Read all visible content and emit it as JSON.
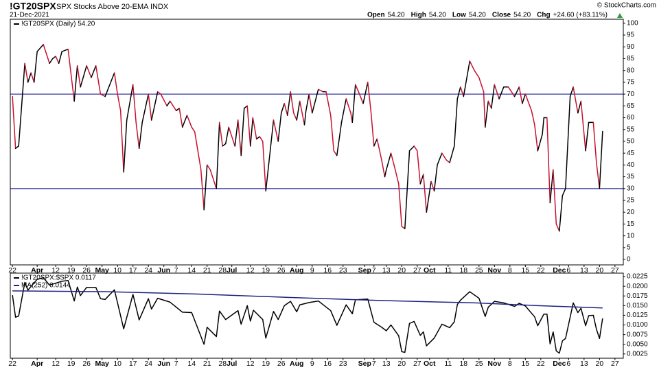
{
  "header": {
    "symbol": "!GT20SPX",
    "description": "SPX Stocks Above 20-EMA INDX",
    "date": "21-Dec-2021",
    "credit": "© StockCharts.com",
    "quote": [
      {
        "label": "Open",
        "value": "54.20"
      },
      {
        "label": "High",
        "value": "54.20"
      },
      {
        "label": "Low",
        "value": "54.20"
      },
      {
        "label": "Close",
        "value": "54.20"
      },
      {
        "label": "Chg",
        "value": "+24.60 (+83.11%)"
      }
    ]
  },
  "chart_data": [
    {
      "type": "line",
      "series": [
        {
          "name": "!GT20SPX (Daily) 54.20",
          "up_color": "#000000",
          "down_color": "#c8102e",
          "x": [
            0,
            1,
            2,
            4,
            5,
            6,
            7,
            8,
            10,
            12,
            13,
            14,
            15,
            16,
            18,
            20,
            21,
            22,
            24,
            25.5,
            27,
            28.5,
            30,
            33,
            34,
            35,
            36,
            37,
            39,
            40,
            41,
            42,
            44,
            45,
            47,
            48,
            50,
            51,
            53,
            54,
            55,
            56.5,
            58,
            59,
            61,
            62,
            63,
            64,
            66,
            67,
            68,
            69,
            70,
            72,
            73,
            74,
            75,
            76,
            77,
            77.8,
            79,
            80,
            81,
            82,
            83.5,
            84.5,
            86,
            87,
            88,
            89,
            90,
            91,
            92,
            93,
            94.5,
            95,
            96,
            97,
            98,
            99,
            100.5,
            101.5,
            103,
            104,
            105,
            106.5,
            108,
            109.5,
            110,
            111,
            112,
            113.5,
            115,
            116,
            117,
            118,
            119.5,
            120.5,
            121,
            122.5,
            123.5,
            125,
            126,
            127,
            128.5,
            130,
            131,
            132,
            133,
            134,
            135.5,
            136.5,
            137.5,
            139,
            140.5,
            141.5,
            143,
            144,
            145,
            146,
            148,
            149.5,
            151,
            152.5,
            153,
            154,
            155,
            156,
            157.5,
            159,
            160.5,
            162.5,
            164,
            165,
            166,
            168,
            169,
            170,
            171.5,
            172,
            173,
            174,
            175,
            176,
            177,
            178,
            179,
            180.5,
            181.5,
            183,
            184,
            185.5,
            186.5,
            188,
            189,
            190,
            191
          ],
          "values": [
            69,
            47,
            48,
            83,
            75,
            79,
            75,
            88,
            91,
            83,
            85,
            86,
            83,
            88,
            89,
            67,
            82,
            73,
            82,
            77,
            82,
            70,
            69,
            79,
            70,
            63,
            37,
            59,
            74,
            58,
            47,
            58,
            70,
            59,
            71,
            70,
            65,
            67,
            63,
            64,
            56,
            61,
            56,
            54,
            38,
            21,
            40,
            38,
            30,
            58,
            48,
            49,
            56,
            48,
            59,
            44,
            64,
            65,
            48,
            60,
            51,
            52,
            50,
            29,
            47,
            59,
            50,
            62,
            66,
            61,
            71,
            62,
            59,
            67,
            57,
            63,
            70,
            62,
            67,
            72,
            71,
            71,
            61,
            46,
            44,
            58,
            68,
            62,
            58,
            74,
            71,
            66,
            75,
            63,
            48,
            51,
            42,
            35,
            38,
            45,
            40,
            32,
            14,
            13,
            46,
            48,
            46,
            32,
            36,
            20,
            33,
            29,
            40,
            45,
            42,
            41,
            48,
            68,
            73,
            69,
            84,
            80,
            77,
            71,
            56,
            67,
            64,
            74,
            68,
            73,
            73,
            69,
            73,
            66,
            70,
            63,
            57,
            46,
            53,
            60,
            60,
            24,
            38,
            15,
            12,
            27,
            30,
            69,
            73,
            62,
            67,
            46,
            58,
            58,
            41,
            30,
            54.2
          ]
        }
      ],
      "xlim": [
        -0.7,
        197.7
      ],
      "ylim": [
        -2.3,
        101.7
      ],
      "yticks": [
        0,
        5,
        10,
        15,
        20,
        25,
        30,
        35,
        40,
        45,
        50,
        55,
        60,
        65,
        70,
        75,
        80,
        85,
        90,
        95,
        100
      ],
      "reference_lines": [
        70,
        30
      ],
      "reference_color": "#000080",
      "xticks": [
        {
          "value": 0,
          "label": "22"
        },
        {
          "value": 8,
          "label": "Apr"
        },
        {
          "value": 14,
          "label": "12"
        },
        {
          "value": 19,
          "label": "19"
        },
        {
          "value": 24,
          "label": "26"
        },
        {
          "value": 29,
          "label": "May"
        },
        {
          "value": 34,
          "label": "10"
        },
        {
          "value": 39,
          "label": "17"
        },
        {
          "value": 44,
          "label": "24"
        },
        {
          "value": 49,
          "label": "Jun"
        },
        {
          "value": 53,
          "label": "7"
        },
        {
          "value": 58,
          "label": "14"
        },
        {
          "value": 63,
          "label": "21"
        },
        {
          "value": 68,
          "label": "28"
        },
        {
          "value": 71,
          "label": "Jul"
        },
        {
          "value": 77,
          "label": "12"
        },
        {
          "value": 82,
          "label": "19"
        },
        {
          "value": 87,
          "label": "26"
        },
        {
          "value": 92,
          "label": "Aug"
        },
        {
          "value": 97,
          "label": "9"
        },
        {
          "value": 102,
          "label": "16"
        },
        {
          "value": 107,
          "label": "23"
        },
        {
          "value": 114,
          "label": "Sep"
        },
        {
          "value": 117,
          "label": "7"
        },
        {
          "value": 121,
          "label": "13"
        },
        {
          "value": 126,
          "label": "20"
        },
        {
          "value": 131,
          "label": "27"
        },
        {
          "value": 135,
          "label": "Oct"
        },
        {
          "value": 141,
          "label": "11"
        },
        {
          "value": 146,
          "label": "18"
        },
        {
          "value": 151,
          "label": "25"
        },
        {
          "value": 156,
          "label": "Nov"
        },
        {
          "value": 161,
          "label": "8"
        },
        {
          "value": 166,
          "label": "15"
        },
        {
          "value": 171,
          "label": "22"
        },
        {
          "value": 177,
          "label": "Dec"
        },
        {
          "value": 180,
          "label": "6"
        },
        {
          "value": 185,
          "label": "13"
        },
        {
          "value": 190,
          "label": "20"
        },
        {
          "value": 195,
          "label": "27"
        }
      ]
    },
    {
      "type": "line",
      "series": [
        {
          "name": "!GT20SPX:$SPX 0.0117",
          "color": "#000000",
          "x": [
            0,
            1,
            2,
            4,
            5,
            8,
            10,
            12,
            16,
            18,
            20,
            21,
            22,
            24,
            27,
            28.5,
            30,
            33,
            36,
            39,
            41,
            44,
            45,
            47,
            51,
            55,
            58,
            62,
            63,
            66,
            67,
            69,
            73,
            74,
            76,
            77,
            78,
            81,
            82,
            84.5,
            86,
            88,
            90,
            92,
            93,
            96,
            99,
            103,
            105,
            108,
            110,
            111,
            115,
            117,
            119.5,
            121,
            122.5,
            125,
            126,
            127,
            128.5,
            130,
            132,
            133,
            134,
            136.5,
            139,
            141.5,
            143,
            144,
            145,
            148,
            151,
            153,
            154,
            156,
            159,
            162.5,
            164,
            166,
            169,
            170,
            172,
            173,
            174,
            175,
            176,
            177,
            178,
            179,
            181.5,
            183,
            184,
            185.5,
            186.5,
            188,
            189,
            190,
            191
          ],
          "values": [
            0.0177,
            0.012,
            0.0123,
            0.021,
            0.019,
            0.0218,
            0.0222,
            0.0203,
            0.0213,
            0.0215,
            0.0162,
            0.0198,
            0.0176,
            0.0197,
            0.0197,
            0.0168,
            0.0166,
            0.0191,
            0.009,
            0.0179,
            0.0113,
            0.0168,
            0.0141,
            0.0169,
            0.0159,
            0.0133,
            0.0132,
            0.005,
            0.0094,
            0.007,
            0.0136,
            0.0114,
            0.0137,
            0.0102,
            0.015,
            0.011,
            0.0138,
            0.0114,
            0.0066,
            0.0135,
            0.0114,
            0.015,
            0.0161,
            0.0134,
            0.0152,
            0.0158,
            0.0162,
            0.0137,
            0.0099,
            0.0152,
            0.0129,
            0.0165,
            0.0167,
            0.0107,
            0.0094,
            0.0085,
            0.01,
            0.0072,
            0.0031,
            0.0029,
            0.0104,
            0.0109,
            0.0073,
            0.0082,
            0.0046,
            0.0066,
            0.0102,
            0.0093,
            0.0108,
            0.0153,
            0.0164,
            0.0186,
            0.0169,
            0.0122,
            0.0146,
            0.0161,
            0.0157,
            0.0148,
            0.0156,
            0.0149,
            0.0121,
            0.0098,
            0.0128,
            0.0128,
            0.0051,
            0.0082,
            0.0033,
            0.0027,
            0.0059,
            0.0065,
            0.0157,
            0.0132,
            0.0143,
            0.0098,
            0.0124,
            0.0125,
            0.0089,
            0.0065,
            0.0117
          ]
        },
        {
          "name": "MA(252) 0.0144",
          "color": "#1a237e",
          "x": [
            0,
            30,
            60,
            90,
            120,
            150,
            170,
            191
          ],
          "values": [
            0.0188,
            0.0186,
            0.018,
            0.0171,
            0.0163,
            0.0157,
            0.015,
            0.0144
          ]
        }
      ],
      "xlim": [
        -0.7,
        197.7
      ],
      "ylim": [
        0.0014,
        0.0234
      ],
      "yticks": [
        0.0025,
        {
          "value": 0.005,
          "label": "0.0050"
        },
        0.0075,
        {
          "value": 0.01,
          "label": "0.0100"
        },
        0.0125,
        {
          "value": 0.015,
          "label": "0.0150"
        },
        0.0175,
        {
          "value": 0.02,
          "label": "0.0200"
        },
        0.0225
      ],
      "xticks": [
        {
          "value": 0,
          "label": "22"
        },
        {
          "value": 8,
          "label": "Apr"
        },
        {
          "value": 14,
          "label": "12"
        },
        {
          "value": 19,
          "label": "19"
        },
        {
          "value": 24,
          "label": "26"
        },
        {
          "value": 29,
          "label": "May"
        },
        {
          "value": 34,
          "label": "10"
        },
        {
          "value": 39,
          "label": "17"
        },
        {
          "value": 44,
          "label": "24"
        },
        {
          "value": 49,
          "label": "Jun"
        },
        {
          "value": 53,
          "label": "7"
        },
        {
          "value": 58,
          "label": "14"
        },
        {
          "value": 63,
          "label": "21"
        },
        {
          "value": 68,
          "label": "28"
        },
        {
          "value": 71,
          "label": "Jul"
        },
        {
          "value": 77,
          "label": "12"
        },
        {
          "value": 82,
          "label": "19"
        },
        {
          "value": 87,
          "label": "26"
        },
        {
          "value": 92,
          "label": "Aug"
        },
        {
          "value": 97,
          "label": "9"
        },
        {
          "value": 102,
          "label": "16"
        },
        {
          "value": 107,
          "label": "23"
        },
        {
          "value": 114,
          "label": "Sep"
        },
        {
          "value": 117,
          "label": "7"
        },
        {
          "value": 121,
          "label": "13"
        },
        {
          "value": 126,
          "label": "20"
        },
        {
          "value": 131,
          "label": "27"
        },
        {
          "value": 135,
          "label": "Oct"
        },
        {
          "value": 141,
          "label": "11"
        },
        {
          "value": 146,
          "label": "18"
        },
        {
          "value": 151,
          "label": "25"
        },
        {
          "value": 156,
          "label": "Nov"
        },
        {
          "value": 161,
          "label": "8"
        },
        {
          "value": 166,
          "label": "15"
        },
        {
          "value": 171,
          "label": "22"
        },
        {
          "value": 177,
          "label": "Dec"
        },
        {
          "value": 180,
          "label": "6"
        },
        {
          "value": 185,
          "label": "13"
        },
        {
          "value": 190,
          "label": "20"
        },
        {
          "value": 195,
          "label": "27"
        }
      ]
    }
  ]
}
